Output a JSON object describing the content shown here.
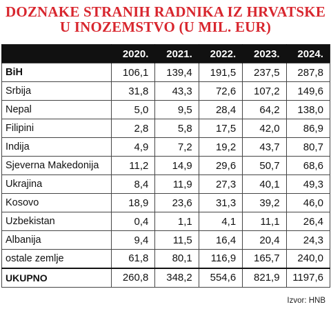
{
  "chart_data": {
    "type": "table",
    "title_lines": [
      "DOZNAKE STRANIH RADNIKA IZ HRVATSKE",
      "U INOZEMSTVO (U MIL. EUR)"
    ],
    "columns": [
      "2020.",
      "2021.",
      "2022.",
      "2023.",
      "2024."
    ],
    "rows": [
      {
        "label": "BiH",
        "values": [
          "106,1",
          "139,4",
          "191,5",
          "237,5",
          "287,8"
        ]
      },
      {
        "label": "Srbija",
        "values": [
          "31,8",
          "43,3",
          "72,6",
          "107,2",
          "149,6"
        ]
      },
      {
        "label": "Nepal",
        "values": [
          "5,0",
          "9,5",
          "28,4",
          "64,2",
          "138,0"
        ]
      },
      {
        "label": "Filipini",
        "values": [
          "2,8",
          "5,8",
          "17,5",
          "42,0",
          "86,9"
        ]
      },
      {
        "label": "Indija",
        "values": [
          "4,9",
          "7,2",
          "19,2",
          "43,7",
          "80,7"
        ]
      },
      {
        "label": "Sjeverna Makedonija",
        "values": [
          "11,2",
          "14,9",
          "29,6",
          "50,7",
          "68,6"
        ]
      },
      {
        "label": "Ukrajina",
        "values": [
          "8,4",
          "11,9",
          "27,3",
          "40,1",
          "49,3"
        ]
      },
      {
        "label": "Kosovo",
        "values": [
          "18,9",
          "23,6",
          "31,3",
          "39,2",
          "46,0"
        ]
      },
      {
        "label": "Uzbekistan",
        "values": [
          "0,4",
          "1,1",
          "4,1",
          "11,1",
          "26,4"
        ]
      },
      {
        "label": "Albanija",
        "values": [
          "9,4",
          "11,5",
          "16,4",
          "20,4",
          "24,3"
        ]
      },
      {
        "label": "ostale zemlje",
        "values": [
          "61,8",
          "80,1",
          "116,9",
          "165,7",
          "240,0"
        ]
      }
    ],
    "total": {
      "label": "UKUPNO",
      "values": [
        "260,8",
        "348,2",
        "554,6",
        "821,9",
        "1197,6"
      ]
    },
    "source": "Izvor: HNB",
    "colors": {
      "title": "#d8262e",
      "header_bg": "#111111",
      "header_text": "#ffffff"
    }
  }
}
